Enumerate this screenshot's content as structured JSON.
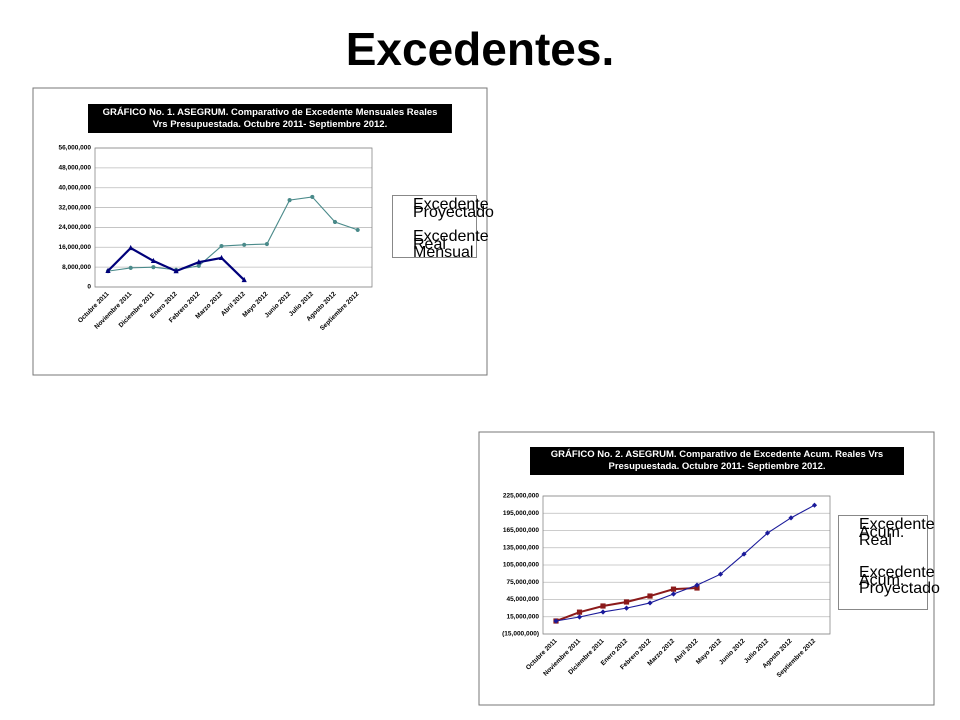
{
  "title": "Excedentes.",
  "chart_data": [
    {
      "type": "line",
      "title": "GRÁFICO No. 1. ASEGRUM. Comparativo de Excedente Mensuales Reales Vrs Presupuestada. Octubre 2011- Septiembre 2012.",
      "categories": [
        "Octubre 2011",
        "Noviembre 2011",
        "Diciembre 2011",
        "Enero 2012",
        "Febrero 2012",
        "Marzo 2012",
        "Abril 2012",
        "Mayo 2012",
        "Junio 2012",
        "Julio 2012",
        "Agosto 2012",
        "Septiembre 2012"
      ],
      "ylim": [
        0,
        56000000
      ],
      "yticks": [
        0,
        {
          "value": 8000000,
          "label": "8,000,000"
        },
        {
          "value": 16000000,
          "label": "16,000,000"
        },
        {
          "value": 24000000,
          "label": "24,000,000"
        },
        {
          "value": 32000000,
          "label": "32,000,000"
        },
        {
          "value": 40000000,
          "label": "40,000,000"
        },
        {
          "value": 48000000,
          "label": "48,000,000"
        },
        {
          "value": 56000000,
          "label": "56,000,000"
        }
      ],
      "grid": true,
      "legend": "right",
      "series": [
        {
          "name": "Excedente Proyectado",
          "color": "#4a8a8a",
          "values": [
            6400000,
            7700000,
            8000000,
            6900000,
            8500000,
            16500000,
            17000000,
            17300000,
            35000000,
            36300000,
            26200000,
            23000000
          ]
        },
        {
          "name": "Excedente Real Mensual",
          "color": "#00007a",
          "values": [
            6500000,
            15700000,
            10500000,
            6400000,
            10000000,
            11700000,
            2800000,
            null,
            null,
            null,
            null,
            null
          ]
        }
      ]
    },
    {
      "type": "line",
      "title": "GRÁFICO No. 2. ASEGRUM. Comparativo de Excedente Acum. Reales Vrs Presupuestada. Octubre 2011- Septiembre 2012.",
      "categories": [
        "Octubre 2011",
        "Noviembre 2011",
        "Diciembre 2011",
        "Enero 2012",
        "Febrero 2012",
        "Marzo 2012",
        "Abril 2012",
        "Mayo 2012",
        "Junio 2012",
        "Julio 2012",
        "Agosto 2012",
        "Septiembre 2012"
      ],
      "ylim": [
        -15000000,
        225000000
      ],
      "yticks": [
        {
          "value": -15000000,
          "label": "(15,000,000)"
        },
        {
          "value": 15000000,
          "label": "15,000,000"
        },
        {
          "value": 45000000,
          "label": "45,000,000"
        },
        {
          "value": 75000000,
          "label": "75,000,000"
        },
        {
          "value": 105000000,
          "label": "105,000,000"
        },
        {
          "value": 135000000,
          "label": "135,000,000"
        },
        {
          "value": 165000000,
          "label": "165,000,000"
        },
        {
          "value": 195000000,
          "label": "195,000,000"
        },
        {
          "value": 225000000,
          "label": "225,000,000"
        }
      ],
      "grid": true,
      "legend": "right",
      "series": [
        {
          "name": "Excedente Acum. Real",
          "color": "#8b1a1a",
          "values": [
            7600000,
            23000000,
            33700000,
            40700000,
            51000000,
            63000000,
            65000000,
            null,
            null,
            null,
            null,
            null
          ]
        },
        {
          "name": "Excedente Acum. Proyectado",
          "color": "#1a1a9a",
          "values": [
            7600000,
            14600000,
            23300000,
            30000000,
            39000000,
            54600000,
            70000000,
            89000000,
            124000000,
            160600000,
            187000000,
            209000000
          ]
        }
      ]
    }
  ]
}
